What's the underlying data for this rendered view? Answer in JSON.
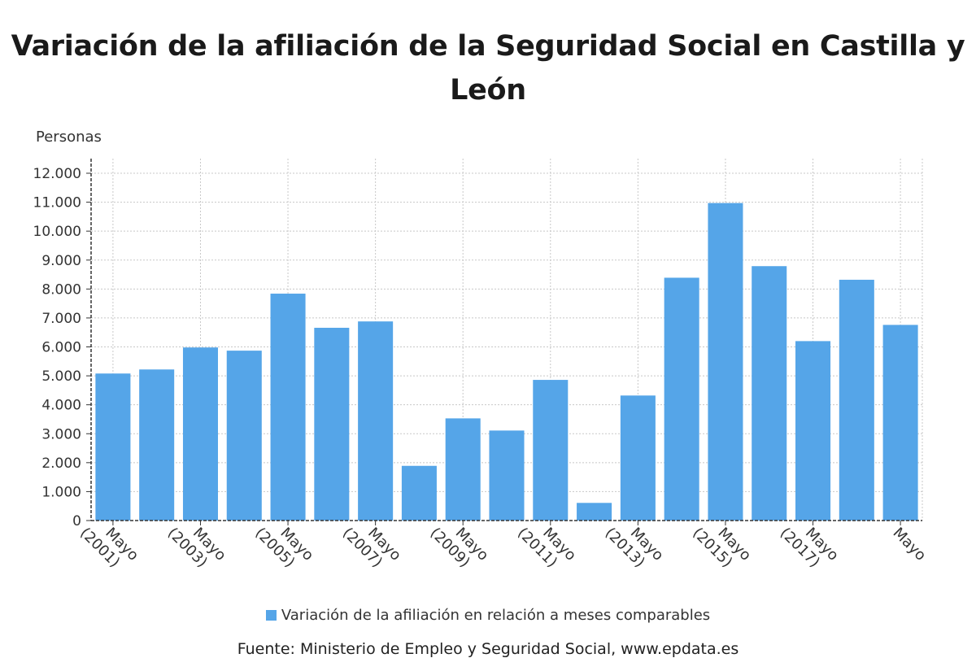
{
  "chart_data": {
    "type": "bar",
    "title": "Variación de la afiliación de la Seguridad Social en Castilla y León",
    "ylabel": "Personas",
    "xlabel": "",
    "ylim": [
      0,
      12000
    ],
    "yticks": [
      "0",
      "1.000",
      "2.000",
      "3.000",
      "4.000",
      "5.000",
      "6.000",
      "7.000",
      "8.000",
      "9.000",
      "10.000",
      "11.000",
      "12.000"
    ],
    "x_tick_labels": [
      {
        "index": 0,
        "line1": "Mayo",
        "line2": "(2001)"
      },
      {
        "index": 2,
        "line1": "Mayo",
        "line2": "(2003)"
      },
      {
        "index": 4,
        "line1": "Mayo",
        "line2": "(2005)"
      },
      {
        "index": 6,
        "line1": "Mayo",
        "line2": "(2007)"
      },
      {
        "index": 8,
        "line1": "Mayo",
        "line2": "(2009)"
      },
      {
        "index": 10,
        "line1": "Mayo",
        "line2": "(2011)"
      },
      {
        "index": 12,
        "line1": "Mayo",
        "line2": "(2013)"
      },
      {
        "index": 14,
        "line1": "Mayo",
        "line2": "(2015)"
      },
      {
        "index": 16,
        "line1": "Mayo",
        "line2": "(2017)"
      },
      {
        "index": 18,
        "line1": "Mayo",
        "line2": ""
      }
    ],
    "series": [
      {
        "name": "Variación de la afiliación en relación a meses comparables",
        "color": "#55a5e8",
        "values": [
          5080,
          5220,
          5980,
          5870,
          7840,
          6660,
          6880,
          1890,
          3530,
          3110,
          4860,
          610,
          4320,
          8390,
          10970,
          8790,
          6200,
          8320,
          6760
        ]
      }
    ],
    "grid": true,
    "legend_position": "bottom"
  },
  "legend": {
    "label": "Variación de la afiliación en relación a meses comparables"
  },
  "source": "Fuente: Ministerio de Empleo y Seguridad Social, www.epdata.es"
}
